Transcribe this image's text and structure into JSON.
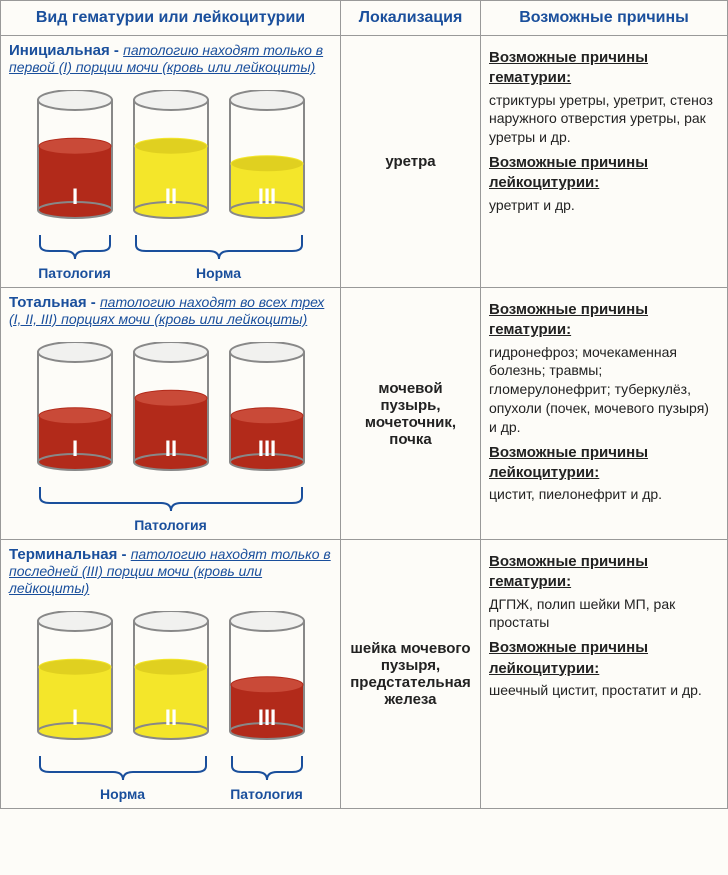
{
  "headers": {
    "col1": "Вид гематурии или лейкоцитурии",
    "col2": "Локализация",
    "col3": "Возможные причины"
  },
  "colors": {
    "blood": "#b22a1a",
    "blood_light": "#c94a38",
    "urine": "#f4e62a",
    "urine_dark": "#e0d020",
    "glass_stroke": "#888",
    "ellipse_fill": "#ddd",
    "blue": "#1a4f9c",
    "brace": "#1a4f9c"
  },
  "glass": {
    "w": 78,
    "h": 130,
    "wall": 2,
    "fill_frac_tall": 0.58,
    "fill_frac_short": 0.42,
    "label_color": "#fff",
    "label_size": 22
  },
  "rows": [
    {
      "title": "Инициальная",
      "desc": "патологию находят только в первой (I) порции мочи (кровь или лейкоциты)",
      "glasses": [
        {
          "label": "I",
          "color": "blood",
          "h": "tall"
        },
        {
          "label": "II",
          "color": "urine",
          "h": "tall"
        },
        {
          "label": "III",
          "color": "urine",
          "h": "short"
        }
      ],
      "braces": [
        {
          "span": [
            0,
            0
          ],
          "label": "Патология"
        },
        {
          "span": [
            1,
            2
          ],
          "label": "Норма"
        }
      ],
      "localization": "уретра",
      "cause_h1": "Возможные причины гематурии:",
      "cause_t1": "стриктуры уретры, уретрит, стеноз наружного отверстия уретры, рак уретры и др.",
      "cause_h2": "Возможные причины лейкоцитурии:",
      "cause_t2": "уретрит и др."
    },
    {
      "title": "Тотальная",
      "desc": "патологию находят во всех трех (I, II, III) порциях мочи (кровь или лейкоциты)",
      "glasses": [
        {
          "label": "I",
          "color": "blood",
          "h": "short"
        },
        {
          "label": "II",
          "color": "blood",
          "h": "tall"
        },
        {
          "label": "III",
          "color": "blood",
          "h": "short"
        }
      ],
      "braces": [
        {
          "span": [
            0,
            2
          ],
          "label": "Патология"
        }
      ],
      "localization": "мочевой пузырь, мочеточник, почка",
      "cause_h1": "Возможные причины гематурии:",
      "cause_t1": "гидронефроз; мочекаменная болезнь; травмы; гломерулонефрит; туберкулёз, опухоли (почек, мочевого пузыря) и др.",
      "cause_h2": "Возможные причины лейкоцитурии:",
      "cause_t2": "цистит, пиелонефрит и др."
    },
    {
      "title": "Терминальная",
      "desc": "патологию находят только в последней (III) порции мочи (кровь или лейкоциты)",
      "glasses": [
        {
          "label": "I",
          "color": "urine",
          "h": "tall"
        },
        {
          "label": "II",
          "color": "urine",
          "h": "tall"
        },
        {
          "label": "III",
          "color": "blood",
          "h": "short"
        }
      ],
      "braces": [
        {
          "span": [
            0,
            1
          ],
          "label": "Норма"
        },
        {
          "span": [
            2,
            2
          ],
          "label": "Патология"
        }
      ],
      "localization": "шейка мочевого пузыря, предстательная железа",
      "cause_h1": "Возможные причины гематурии:",
      "cause_t1": "ДГПЖ, полип шейки МП, рак простаты",
      "cause_h2": "Возможные причины лейкоцитурии:",
      "cause_t2": "шеечный цистит, простатит и др."
    }
  ]
}
